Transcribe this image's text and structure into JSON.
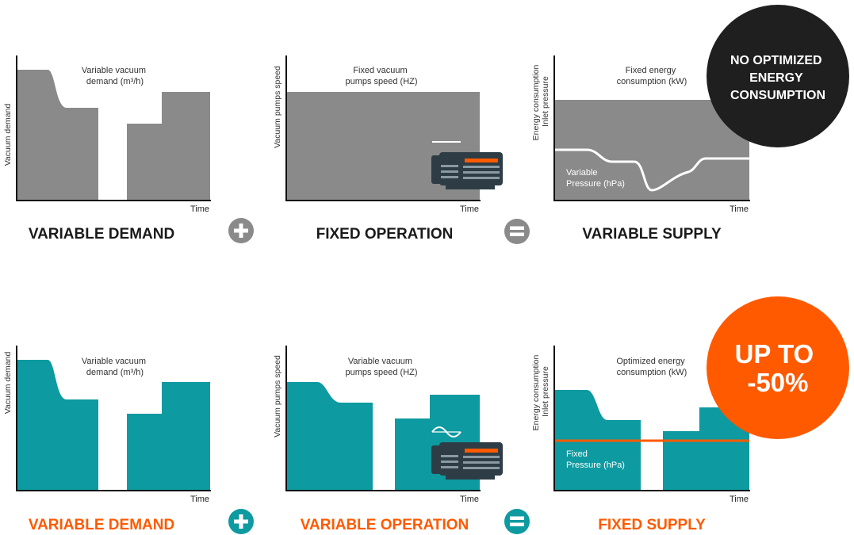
{
  "colors": {
    "gray_fill": "#8a8a8a",
    "teal_fill": "#0d9aa0",
    "orange": "#ff5a00",
    "dark_badge": "#1f1f1f",
    "pump_body": "#2e3d45",
    "text_dark": "#1a1a1a"
  },
  "rows": [
    {
      "id": "top",
      "panels": [
        {
          "title_lines": [
            "Variable vacuum",
            "demand (m³/h)"
          ],
          "axis_lines": [
            "Vacuum demand"
          ],
          "time_label": "Time",
          "caption": "VARIABLE DEMAND"
        },
        {
          "title_lines": [
            "Fixed vacuum",
            "pumps speed (HZ)"
          ],
          "axis_lines": [
            "Vacuum pumps speed"
          ],
          "time_label": "Time",
          "caption": "FIXED OPERATION",
          "pump_icon": "vacuum-pump-icon"
        },
        {
          "title_lines": [
            "Fixed energy",
            "consumption (kW)"
          ],
          "axis_lines": [
            "Energy consumption",
            "Inlet pressure"
          ],
          "time_label": "Time",
          "caption": "VARIABLE SUPPLY",
          "overlay_lines": [
            "Variable",
            "Pressure (hPa)"
          ]
        }
      ],
      "operators": [
        "plus-icon",
        "equals-icon"
      ],
      "badge_lines": [
        "NO OPTIMIZED",
        "ENERGY",
        "CONSUMPTION"
      ]
    },
    {
      "id": "bottom",
      "panels": [
        {
          "title_lines": [
            "Variable vacuum",
            "demand (m³/h)"
          ],
          "axis_lines": [
            "Vacuum demand"
          ],
          "time_label": "Time",
          "caption": "VARIABLE DEMAND"
        },
        {
          "title_lines": [
            "Variable vacuum",
            "pumps speed (HZ)"
          ],
          "axis_lines": [
            "Vacuum pumps speed"
          ],
          "time_label": "Time",
          "caption": "VARIABLE OPERATION",
          "pump_icon": "vacuum-pump-icon"
        },
        {
          "title_lines": [
            "Optimized energy",
            "consumption (kW)"
          ],
          "axis_lines": [
            "Energy consumption",
            "Inlet pressure"
          ],
          "time_label": "Time",
          "caption": "FIXED SUPPLY",
          "overlay_lines": [
            "Fixed",
            "Pressure (hPa)"
          ]
        }
      ],
      "operators": [
        "plus-icon",
        "equals-icon"
      ],
      "badge_lines": [
        "UP TO",
        "-50%"
      ]
    }
  ]
}
